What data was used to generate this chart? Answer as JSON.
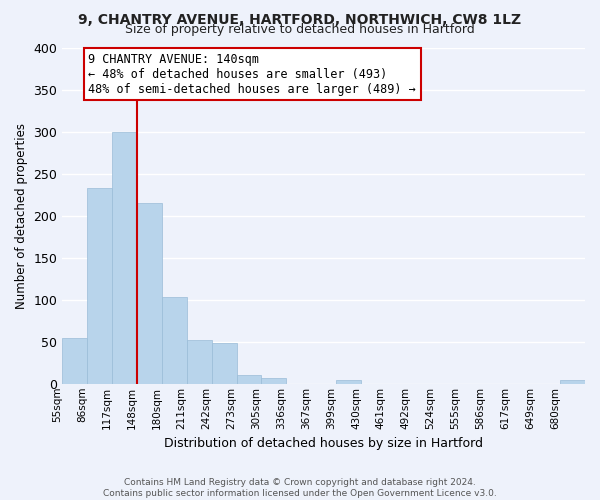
{
  "title1": "9, CHANTRY AVENUE, HARTFORD, NORTHWICH, CW8 1LZ",
  "title2": "Size of property relative to detached houses in Hartford",
  "xlabel": "Distribution of detached houses by size in Hartford",
  "ylabel": "Number of detached properties",
  "bar_color": "#b8d4eb",
  "bar_edge_color": "#9abcd8",
  "tick_labels": [
    "55sqm",
    "86sqm",
    "117sqm",
    "148sqm",
    "180sqm",
    "211sqm",
    "242sqm",
    "273sqm",
    "305sqm",
    "336sqm",
    "367sqm",
    "399sqm",
    "430sqm",
    "461sqm",
    "492sqm",
    "524sqm",
    "555sqm",
    "586sqm",
    "617sqm",
    "649sqm",
    "680sqm"
  ],
  "bar_values": [
    54,
    233,
    300,
    215,
    103,
    52,
    48,
    10,
    7,
    0,
    0,
    4,
    0,
    0,
    0,
    0,
    0,
    0,
    0,
    0,
    4
  ],
  "ylim": [
    0,
    400
  ],
  "yticks": [
    0,
    50,
    100,
    150,
    200,
    250,
    300,
    350,
    400
  ],
  "vline_color": "#cc0000",
  "annotation_title": "9 CHANTRY AVENUE: 140sqm",
  "annotation_line1": "← 48% of detached houses are smaller (493)",
  "annotation_line2": "48% of semi-detached houses are larger (489) →",
  "footer1": "Contains HM Land Registry data © Crown copyright and database right 2024.",
  "footer2": "Contains public sector information licensed under the Open Government Licence v3.0.",
  "background_color": "#eef2fb",
  "plot_bg_color": "#eef2fb",
  "grid_color": "#ffffff",
  "title1_fontsize": 10,
  "title2_fontsize": 9,
  "ylabel_fontsize": 8.5,
  "xlabel_fontsize": 9,
  "tick_fontsize": 7.5,
  "annotation_fontsize": 8.5,
  "footer_fontsize": 6.5
}
